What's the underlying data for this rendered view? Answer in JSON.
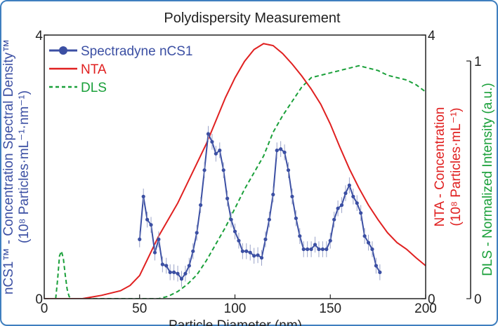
{
  "colors": {
    "frame": "#3f7fbf",
    "spectradyne": "#3b4fa3",
    "nta": "#e02020",
    "dls": "#1aa03a",
    "text": "#222222"
  },
  "chart_data": {
    "type": "line",
    "title": "Polydispersity Measurement",
    "xlabel": "Particle Diameter (nm)",
    "xlim": [
      0,
      200
    ],
    "x_ticks": [
      "0",
      "50",
      "100",
      "150",
      "200"
    ],
    "y_left": {
      "label_line1": "nCS1™ - Concentration Spectral Density™",
      "label_line2": "(10⁸ Particles·mL⁻¹·nm⁻¹)",
      "ylim": [
        0,
        4
      ],
      "ticks": [
        "0",
        "4"
      ]
    },
    "y_right1": {
      "label_line1": "NTA - Concentration",
      "label_line2": "(10⁸ Particles·mL⁻¹)",
      "ylim": [
        0,
        4
      ],
      "ticks": [
        "0",
        "4"
      ]
    },
    "y_right2": {
      "label": "DLS - Normalized Intensity (a.u.)",
      "ylim": [
        0,
        1
      ],
      "ticks": [
        "0",
        "1"
      ]
    },
    "legend": {
      "placement": "top-left",
      "entries": [
        "Spectradyne nCS1",
        "NTA",
        "DLS"
      ]
    },
    "series": [
      {
        "name": "Spectradyne nCS1",
        "axis": "left",
        "style": "line-markers-errorbars",
        "x": [
          50,
          52,
          54,
          56,
          58,
          60,
          62,
          64,
          66,
          68,
          70,
          72,
          74,
          76,
          78,
          80,
          82,
          84,
          86,
          88,
          90,
          92,
          94,
          96,
          98,
          100,
          102,
          104,
          106,
          108,
          110,
          112,
          114,
          116,
          118,
          120,
          122,
          124,
          126,
          128,
          130,
          132,
          134,
          136,
          138,
          140,
          142,
          144,
          146,
          148,
          150,
          152,
          154,
          156,
          158,
          160,
          162,
          164,
          166,
          168,
          170,
          172,
          174,
          176
        ],
        "y": [
          0.9,
          1.55,
          1.2,
          1.12,
          0.7,
          0.9,
          0.52,
          0.5,
          0.4,
          0.4,
          0.38,
          0.3,
          0.38,
          0.5,
          0.72,
          1.0,
          1.42,
          1.95,
          2.5,
          2.38,
          2.2,
          2.25,
          1.95,
          1.52,
          1.2,
          1.02,
          0.88,
          0.72,
          0.72,
          0.7,
          0.65,
          0.66,
          0.62,
          0.9,
          1.2,
          1.58,
          2.25,
          2.27,
          2.22,
          1.95,
          1.55,
          1.22,
          0.95,
          0.75,
          0.75,
          0.75,
          0.82,
          0.75,
          0.75,
          0.75,
          0.88,
          1.2,
          1.37,
          1.42,
          1.6,
          1.72,
          1.55,
          1.45,
          1.3,
          0.95,
          0.85,
          0.75,
          0.5,
          0.4
        ],
        "error": 0.12
      },
      {
        "name": "NTA",
        "axis": "right1",
        "style": "solid",
        "x": [
          0,
          10,
          20,
          30,
          40,
          45,
          50,
          55,
          60,
          65,
          70,
          75,
          80,
          85,
          90,
          95,
          100,
          105,
          110,
          115,
          120,
          125,
          130,
          135,
          140,
          145,
          150,
          155,
          160,
          165,
          170,
          175,
          180,
          185,
          190,
          195,
          200
        ],
        "y": [
          0,
          0,
          0,
          0.05,
          0.12,
          0.2,
          0.35,
          0.65,
          0.95,
          1.2,
          1.45,
          1.75,
          2.05,
          2.35,
          2.7,
          3.05,
          3.35,
          3.6,
          3.78,
          3.87,
          3.84,
          3.72,
          3.56,
          3.38,
          3.18,
          2.95,
          2.65,
          2.3,
          1.97,
          1.68,
          1.42,
          1.2,
          1.0,
          0.85,
          0.75,
          0.62,
          0.5
        ]
      },
      {
        "name": "DLS",
        "axis": "right2",
        "style": "dashed",
        "x": [
          6,
          7,
          8,
          9,
          10,
          11,
          12,
          13,
          14,
          15,
          60,
          65,
          70,
          75,
          80,
          85,
          90,
          95,
          100,
          105,
          110,
          115,
          120,
          125,
          130,
          135,
          140,
          145,
          150,
          155,
          160,
          165,
          170,
          175,
          180,
          185,
          190,
          195,
          200
        ],
        "y": [
          0,
          0.08,
          0.18,
          0.2,
          0.17,
          0.1,
          0.04,
          0.01,
          0,
          0,
          0,
          0.01,
          0.03,
          0.06,
          0.1,
          0.16,
          0.23,
          0.3,
          0.38,
          0.46,
          0.53,
          0.6,
          0.7,
          0.77,
          0.83,
          0.89,
          0.93,
          0.94,
          0.95,
          0.96,
          0.97,
          0.98,
          0.97,
          0.96,
          0.94,
          0.93,
          0.92,
          0.9,
          0.87
        ]
      }
    ]
  }
}
